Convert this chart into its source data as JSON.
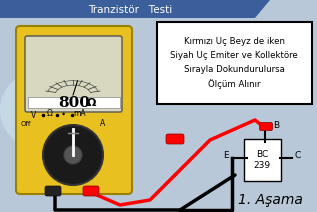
{
  "title": "Tranzistör   Testi",
  "title_bg": "#3a5f9a",
  "title_color": "white",
  "title_fontsize": 7.5,
  "bg_color": "#b8c8d8",
  "text_box_text": "Kırmızı Uç Beyz de iken\nSiyah Uç Emiter ve Kollektöre\nSırayla Dokundurulursa\nÖlçüm Alınır",
  "reading": "800",
  "reading_unit": "Ω",
  "step_text": "1. Aşama",
  "multimeter_body_color": "#e8c020",
  "transistor_label": "BC\n239",
  "transistor_pins": [
    "E",
    "B",
    "C"
  ],
  "logo_color": "#4a6fa5",
  "screen_bg": "#d8d8c0",
  "knob_color": "#1a1a1a"
}
